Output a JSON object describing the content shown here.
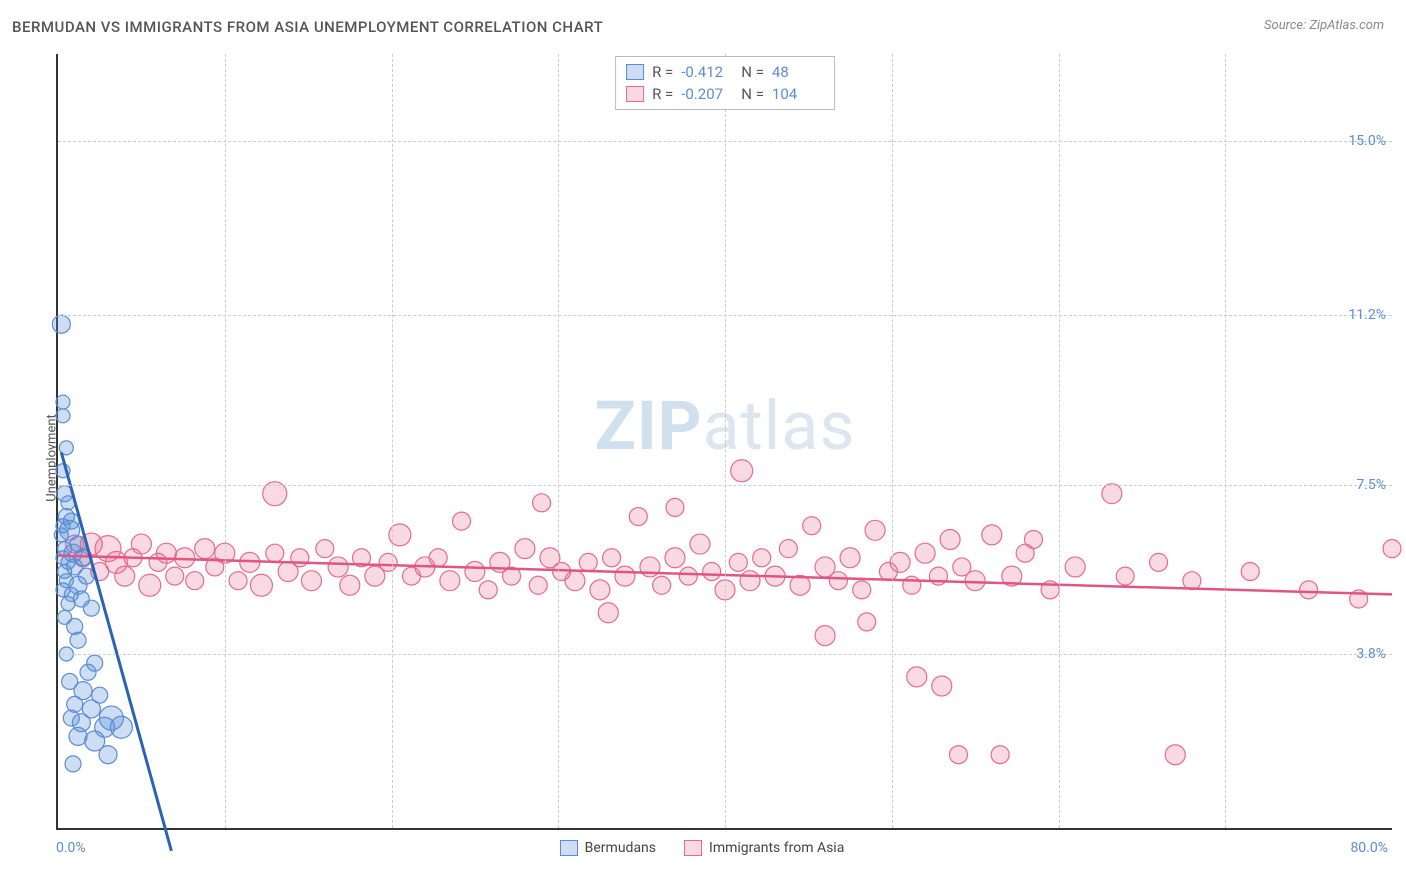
{
  "header": {
    "title": "BERMUDAN VS IMMIGRANTS FROM ASIA UNEMPLOYMENT CORRELATION CHART",
    "source_prefix": "Source: ",
    "source_name": "ZipAtlas.com"
  },
  "watermark": {
    "bold": "ZIP",
    "rest": "atlas"
  },
  "chart": {
    "type": "scatter",
    "ylabel": "Unemployment",
    "xlim": [
      0,
      80
    ],
    "ylim": [
      0,
      16.9
    ],
    "xticks": [
      {
        "v": 0,
        "label": "0.0%"
      },
      {
        "v": 80,
        "label": "80.0%"
      }
    ],
    "yticks": [
      {
        "v": 3.8,
        "label": "3.8%"
      },
      {
        "v": 7.5,
        "label": "7.5%"
      },
      {
        "v": 11.2,
        "label": "11.2%"
      },
      {
        "v": 15.0,
        "label": "15.0%"
      }
    ],
    "vgrid_x": [
      10,
      20,
      30,
      40,
      50,
      60,
      70
    ],
    "background_color": "#ffffff",
    "grid_color": "#cccccc"
  },
  "series": {
    "blue": {
      "name": "Bermudans",
      "marker_fill": "rgba(91,141,214,0.30)",
      "marker_stroke": "#5b8dd6",
      "line_color": "#2a63b5",
      "line_width": 3,
      "R": "-0.412",
      "N": "48",
      "trend": {
        "x1": 0.2,
        "y1": 8.2,
        "x2": 6.8,
        "y2": -0.5
      },
      "points": [
        [
          0.2,
          11.0,
          9
        ],
        [
          0.3,
          9.3,
          7
        ],
        [
          0.3,
          9.0,
          7
        ],
        [
          0.5,
          8.3,
          7
        ],
        [
          0.3,
          7.8,
          7
        ],
        [
          0.4,
          7.3,
          8
        ],
        [
          0.6,
          7.1,
          7
        ],
        [
          0.5,
          6.8,
          8
        ],
        [
          0.8,
          6.7,
          8
        ],
        [
          0.3,
          6.6,
          7
        ],
        [
          0.7,
          6.5,
          10
        ],
        [
          0.2,
          6.4,
          7
        ],
        [
          1.2,
          6.2,
          8
        ],
        [
          0.4,
          6.1,
          7
        ],
        [
          0.9,
          6.0,
          9
        ],
        [
          0.3,
          5.9,
          7
        ],
        [
          1.5,
          5.9,
          8
        ],
        [
          0.6,
          5.8,
          7
        ],
        [
          1.0,
          5.7,
          8
        ],
        [
          0.4,
          5.6,
          7
        ],
        [
          1.7,
          5.5,
          8
        ],
        [
          0.5,
          5.4,
          7
        ],
        [
          1.2,
          5.3,
          9
        ],
        [
          0.3,
          5.2,
          7
        ],
        [
          0.8,
          5.1,
          7
        ],
        [
          1.4,
          5.0,
          8
        ],
        [
          0.6,
          4.9,
          7
        ],
        [
          2.0,
          4.8,
          8
        ],
        [
          0.4,
          4.6,
          7
        ],
        [
          1.0,
          4.4,
          8
        ],
        [
          1.2,
          4.1,
          8
        ],
        [
          0.5,
          3.8,
          7
        ],
        [
          2.2,
          3.6,
          8
        ],
        [
          1.8,
          3.4,
          8
        ],
        [
          0.7,
          3.2,
          8
        ],
        [
          1.5,
          3.0,
          9
        ],
        [
          2.5,
          2.9,
          8
        ],
        [
          1.0,
          2.7,
          8
        ],
        [
          2.0,
          2.6,
          9
        ],
        [
          0.8,
          2.4,
          8
        ],
        [
          3.2,
          2.4,
          12
        ],
        [
          1.4,
          2.3,
          9
        ],
        [
          2.8,
          2.2,
          10
        ],
        [
          3.8,
          2.2,
          11
        ],
        [
          1.2,
          2.0,
          9
        ],
        [
          2.2,
          1.9,
          10
        ],
        [
          3.0,
          1.6,
          9
        ],
        [
          0.9,
          1.4,
          8
        ]
      ]
    },
    "pink": {
      "name": "Immigrants from Asia",
      "marker_fill": "rgba(232,106,144,0.25)",
      "marker_stroke": "#e86a90",
      "line_color": "#e05583",
      "line_width": 2.5,
      "R": "-0.207",
      "N": "104",
      "trend": {
        "x1": 0,
        "y1": 5.95,
        "x2": 80,
        "y2": 5.1
      },
      "points": [
        [
          1.0,
          6.2,
          9
        ],
        [
          1.5,
          5.9,
          9
        ],
        [
          2.0,
          6.2,
          11
        ],
        [
          2.5,
          5.6,
          9
        ],
        [
          3.0,
          6.1,
          13
        ],
        [
          3.5,
          5.8,
          11
        ],
        [
          4.0,
          5.5,
          10
        ],
        [
          4.5,
          5.9,
          9
        ],
        [
          5.0,
          6.2,
          10
        ],
        [
          5.5,
          5.3,
          11
        ],
        [
          6.0,
          5.8,
          9
        ],
        [
          6.5,
          6.0,
          10
        ],
        [
          7.0,
          5.5,
          9
        ],
        [
          7.6,
          5.9,
          10
        ],
        [
          8.2,
          5.4,
          9
        ],
        [
          8.8,
          6.1,
          10
        ],
        [
          9.4,
          5.7,
          9
        ],
        [
          10.0,
          6.0,
          10
        ],
        [
          10.8,
          5.4,
          9
        ],
        [
          11.5,
          5.8,
          10
        ],
        [
          12.2,
          5.3,
          11
        ],
        [
          13.0,
          6.0,
          9
        ],
        [
          13.8,
          5.6,
          10
        ],
        [
          13.0,
          7.3,
          12
        ],
        [
          14.5,
          5.9,
          9
        ],
        [
          15.2,
          5.4,
          10
        ],
        [
          16.0,
          6.1,
          9
        ],
        [
          16.8,
          5.7,
          10
        ],
        [
          17.5,
          5.3,
          10
        ],
        [
          18.2,
          5.9,
          9
        ],
        [
          19.0,
          5.5,
          10
        ],
        [
          19.8,
          5.8,
          9
        ],
        [
          20.5,
          6.4,
          11
        ],
        [
          21.2,
          5.5,
          9
        ],
        [
          22.0,
          5.7,
          10
        ],
        [
          22.8,
          5.9,
          9
        ],
        [
          23.5,
          5.4,
          10
        ],
        [
          24.2,
          6.7,
          9
        ],
        [
          25.0,
          5.6,
          10
        ],
        [
          25.8,
          5.2,
          9
        ],
        [
          26.5,
          5.8,
          10
        ],
        [
          27.2,
          5.5,
          9
        ],
        [
          28.0,
          6.1,
          10
        ],
        [
          28.8,
          5.3,
          9
        ],
        [
          29.5,
          5.9,
          10
        ],
        [
          29.0,
          7.1,
          9
        ],
        [
          30.2,
          5.6,
          9
        ],
        [
          31.0,
          5.4,
          10
        ],
        [
          31.8,
          5.8,
          9
        ],
        [
          32.5,
          5.2,
          10
        ],
        [
          33.2,
          5.9,
          9
        ],
        [
          33.0,
          4.7,
          10
        ],
        [
          34.0,
          5.5,
          10
        ],
        [
          34.8,
          6.8,
          9
        ],
        [
          35.5,
          5.7,
          10
        ],
        [
          36.2,
          5.3,
          9
        ],
        [
          37.0,
          5.9,
          10
        ],
        [
          37.8,
          5.5,
          9
        ],
        [
          38.5,
          6.2,
          10
        ],
        [
          37.0,
          7.0,
          9
        ],
        [
          39.2,
          5.6,
          9
        ],
        [
          40.0,
          5.2,
          10
        ],
        [
          40.8,
          5.8,
          9
        ],
        [
          41.5,
          5.4,
          10
        ],
        [
          41.0,
          7.8,
          11
        ],
        [
          42.2,
          5.9,
          9
        ],
        [
          43.0,
          5.5,
          10
        ],
        [
          43.8,
          6.1,
          9
        ],
        [
          44.5,
          5.3,
          10
        ],
        [
          45.2,
          6.6,
          9
        ],
        [
          46.0,
          5.7,
          10
        ],
        [
          46.8,
          5.4,
          9
        ],
        [
          47.5,
          5.9,
          10
        ],
        [
          48.2,
          5.2,
          9
        ],
        [
          49.0,
          6.5,
          10
        ],
        [
          49.8,
          5.6,
          9
        ],
        [
          46.0,
          4.2,
          10
        ],
        [
          50.5,
          5.8,
          10
        ],
        [
          51.2,
          5.3,
          9
        ],
        [
          52.0,
          6.0,
          10
        ],
        [
          48.5,
          4.5,
          9
        ],
        [
          52.8,
          5.5,
          9
        ],
        [
          53.5,
          6.3,
          10
        ],
        [
          54.2,
          5.7,
          9
        ],
        [
          55.0,
          5.4,
          10
        ],
        [
          56.0,
          6.4,
          10
        ],
        [
          51.5,
          3.3,
          10
        ],
        [
          57.2,
          5.5,
          10
        ],
        [
          58.0,
          6.0,
          9
        ],
        [
          53.0,
          3.1,
          10
        ],
        [
          59.5,
          5.2,
          9
        ],
        [
          58.5,
          6.3,
          9
        ],
        [
          61.0,
          5.7,
          10
        ],
        [
          64.0,
          5.5,
          9
        ],
        [
          66.0,
          5.8,
          9
        ],
        [
          63.2,
          7.3,
          10
        ],
        [
          54.0,
          1.6,
          9
        ],
        [
          68.0,
          5.4,
          9
        ],
        [
          67.0,
          1.6,
          10
        ],
        [
          71.5,
          5.6,
          9
        ],
        [
          75.0,
          5.2,
          9
        ],
        [
          56.5,
          1.6,
          9
        ],
        [
          78.0,
          5.0,
          9
        ],
        [
          80.0,
          6.1,
          9
        ]
      ]
    }
  },
  "stats_legend": {
    "r_label": "R =",
    "n_label": "N ="
  },
  "bottom_legend": {
    "items": [
      {
        "key": "blue"
      },
      {
        "key": "pink"
      }
    ]
  }
}
